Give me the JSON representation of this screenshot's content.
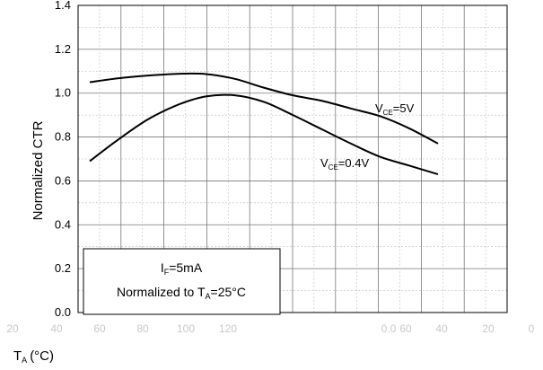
{
  "chart_data": {
    "type": "line",
    "ylabel": "Normalized CTR",
    "ylim": [
      0.0,
      1.4
    ],
    "yticks": [
      "0.0",
      "0.2",
      "0.4",
      "0.6",
      "0.8",
      "1.0",
      "1.2",
      "1.4"
    ],
    "xlabel_main": "T",
    "xlabel_sub": "A",
    "xlabel_unit": "(°C)",
    "xticks": [
      "20",
      "40",
      "60",
      "80",
      "100",
      "120",
      "",
      "",
      "",
      "0.0",
      "",
      "60",
      "40",
      "20",
      "0"
    ],
    "grid": true,
    "series": [
      {
        "name_main": "V",
        "name_sub": "CE",
        "name_tail": "=5V",
        "points": [
          [
            0,
            1.05
          ],
          [
            1,
            1.068
          ],
          [
            2,
            1.08
          ],
          [
            3,
            1.088
          ],
          [
            4,
            1.087
          ],
          [
            5,
            1.065
          ],
          [
            6,
            1.025
          ],
          [
            7,
            0.99
          ],
          [
            8,
            0.965
          ],
          [
            9,
            0.93
          ],
          [
            10,
            0.895
          ],
          [
            11,
            0.84
          ],
          [
            12,
            0.77
          ]
        ]
      },
      {
        "name_main": "V",
        "name_sub": "CE",
        "name_tail": "=0.4V",
        "points": [
          [
            0,
            0.69
          ],
          [
            1,
            0.79
          ],
          [
            2,
            0.88
          ],
          [
            3,
            0.945
          ],
          [
            4,
            0.985
          ],
          [
            5,
            0.99
          ],
          [
            6,
            0.96
          ],
          [
            7,
            0.9
          ],
          [
            8,
            0.835
          ],
          [
            9,
            0.77
          ],
          [
            10,
            0.71
          ],
          [
            11,
            0.67
          ],
          [
            12,
            0.63
          ]
        ]
      }
    ],
    "annotation": {
      "line1_main": "I",
      "line1_sub": "F",
      "line1_tail": "=5mA",
      "line2_main": "Normalized to T",
      "line2_sub": "A",
      "line2_tail": "=25°C"
    }
  },
  "colors": {
    "grid": "#000000",
    "curve": "#000000",
    "xtick": "#c8c8c8"
  }
}
